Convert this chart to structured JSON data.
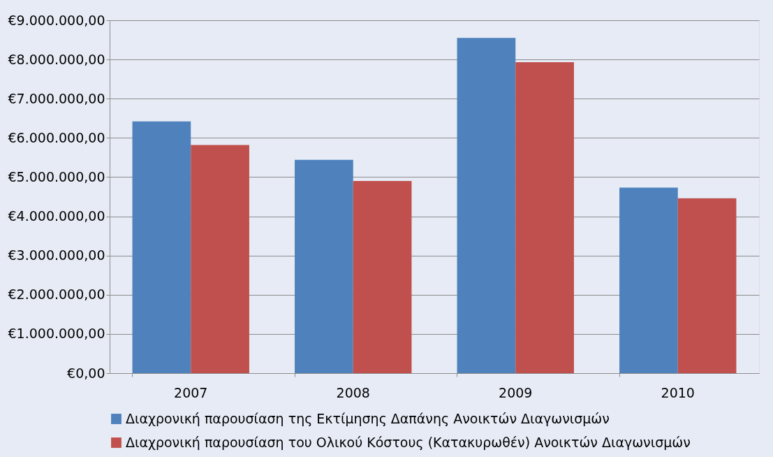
{
  "chart_data": {
    "type": "bar",
    "categories": [
      "2007",
      "2008",
      "2009",
      "2010"
    ],
    "series": [
      {
        "name": "Διαχρονική παρουσίαση της Εκτίμησης Δαπάνης Ανοικτών Διαγωνισμών",
        "color": "#4f81bd",
        "values": [
          6420000,
          5440000,
          8550000,
          4730000
        ]
      },
      {
        "name": "Διαχρονική παρουσίαση του Ολικού Κόστους (Κατακυρωθέν)  Ανοικτών Διαγωνισμών",
        "color": "#c0504d",
        "values": [
          5820000,
          4900000,
          7930000,
          4460000
        ]
      }
    ],
    "ylim": [
      0,
      9000000
    ],
    "yticks": [
      {
        "value": 0,
        "label": "€0,00"
      },
      {
        "value": 1000000,
        "label": "€1.000.000,00"
      },
      {
        "value": 2000000,
        "label": "€2.000.000,00"
      },
      {
        "value": 3000000,
        "label": "€3.000.000,00"
      },
      {
        "value": 4000000,
        "label": "€4.000.000,00"
      },
      {
        "value": 5000000,
        "label": "€5.000.000,00"
      },
      {
        "value": 6000000,
        "label": "€6.000.000,00"
      },
      {
        "value": 7000000,
        "label": "€7.000.000,00"
      },
      {
        "value": 8000000,
        "label": "€8.000.000,00"
      },
      {
        "value": 9000000,
        "label": "€9.000.000,00"
      }
    ],
    "grid": "y",
    "legend": "bottom"
  }
}
